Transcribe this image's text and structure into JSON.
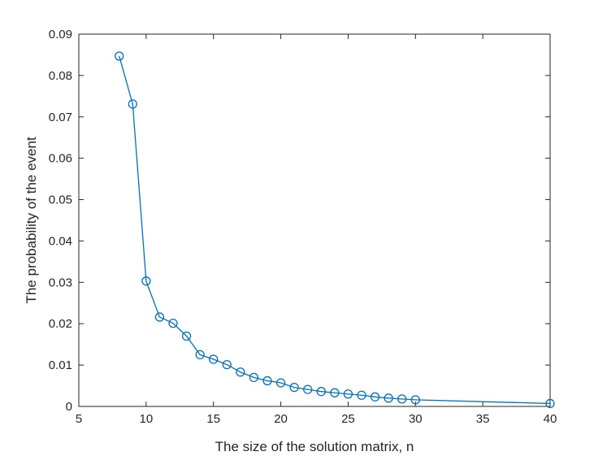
{
  "chart_data": {
    "type": "line",
    "title": "",
    "xlabel": "The size of the solution matrix, n",
    "ylabel": "The probability of the event",
    "xlim": [
      5,
      40
    ],
    "ylim": [
      0,
      0.09
    ],
    "xticks": [
      5,
      10,
      15,
      20,
      25,
      30,
      35,
      40
    ],
    "yticks": [
      0,
      0.01,
      0.02,
      0.03,
      0.04,
      0.05,
      0.06,
      0.07,
      0.08,
      0.09
    ],
    "xtick_labels": [
      "5",
      "10",
      "15",
      "20",
      "25",
      "30",
      "35",
      "40"
    ],
    "ytick_labels": [
      "0",
      "0.01",
      "0.02",
      "0.03",
      "0.04",
      "0.05",
      "0.06",
      "0.07",
      "0.08",
      "0.09"
    ],
    "grid": false,
    "marker": "circle",
    "line_color": "#0072BD",
    "axis_color": "#262626",
    "series": [
      {
        "x": [
          8,
          9,
          10,
          11,
          12,
          13,
          14,
          15,
          16,
          17,
          18,
          19,
          20,
          21,
          22,
          23,
          24,
          25,
          26,
          27,
          28,
          29,
          30,
          40
        ],
        "values": [
          0.0847,
          0.0731,
          0.0303,
          0.0216,
          0.0201,
          0.017,
          0.0125,
          0.0114,
          0.0101,
          0.0083,
          0.007,
          0.0062,
          0.0057,
          0.0046,
          0.0041,
          0.0036,
          0.0033,
          0.003,
          0.0027,
          0.0023,
          0.002,
          0.0018,
          0.0016,
          0.0007
        ]
      }
    ]
  }
}
